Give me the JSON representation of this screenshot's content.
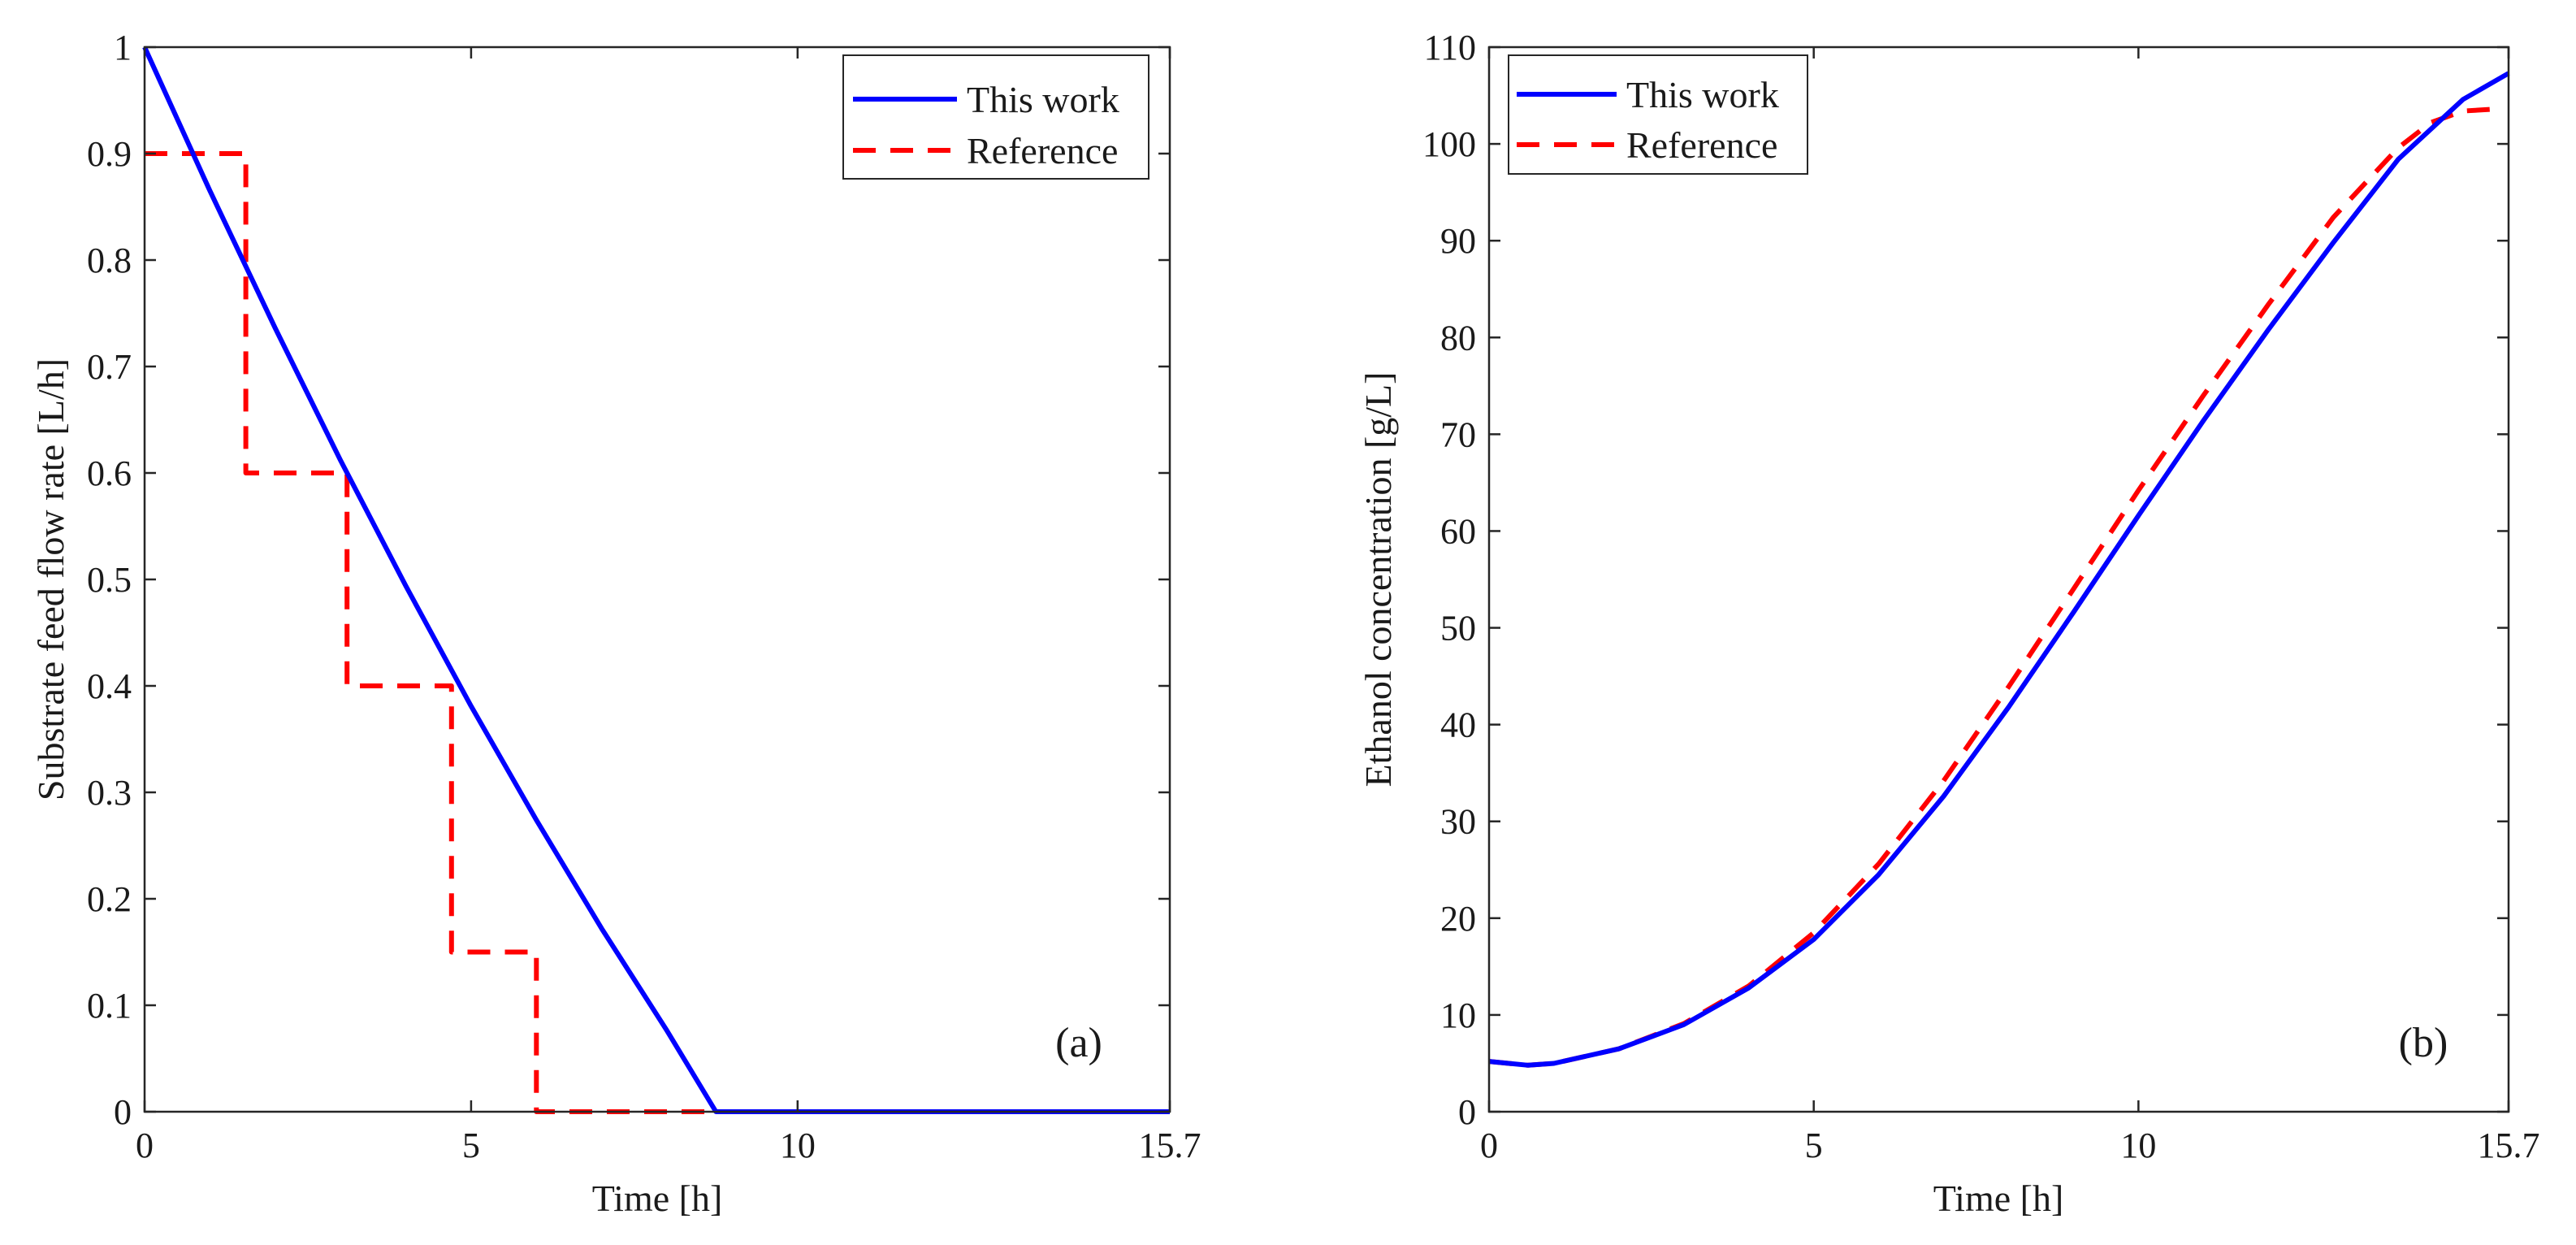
{
  "chart_data": [
    {
      "type": "line",
      "panel_label": "(a)",
      "xlabel": "Time [h]",
      "ylabel": "Substrate feed flow rate [L/h]",
      "xlim": [
        0,
        15.7
      ],
      "ylim": [
        0,
        1
      ],
      "xticks": [
        0,
        5,
        10,
        15.7
      ],
      "xtick_labels": [
        "0",
        "5",
        "10",
        "15.7"
      ],
      "yticks": [
        0,
        0.1,
        0.2,
        0.3,
        0.4,
        0.5,
        0.6,
        0.7,
        0.8,
        0.9,
        1
      ],
      "ytick_labels": [
        "0",
        "0.1",
        "0.2",
        "0.3",
        "0.4",
        "0.5",
        "0.6",
        "0.7",
        "0.8",
        "0.9",
        "1"
      ],
      "grid": false,
      "legend_position": "top-right",
      "series": [
        {
          "name": "This work",
          "color": "#0000ff",
          "style": "solid",
          "x": [
            0,
            1,
            2,
            3,
            4,
            5,
            6,
            7,
            8,
            8.75,
            9.5,
            11,
            13,
            15.7
          ],
          "y": [
            1.0,
            0.865,
            0.736,
            0.612,
            0.494,
            0.381,
            0.274,
            0.172,
            0.076,
            0.0,
            0.0,
            0.0,
            0.0,
            0.0
          ]
        },
        {
          "name": "Reference",
          "color": "#ff0000",
          "style": "dashed",
          "x": [
            0,
            1.55,
            1.55,
            3.1,
            3.1,
            4.7,
            4.7,
            6.0,
            6.0,
            15.7
          ],
          "y": [
            0.9,
            0.9,
            0.6,
            0.6,
            0.4,
            0.4,
            0.15,
            0.15,
            0.0,
            0.0
          ]
        }
      ]
    },
    {
      "type": "line",
      "panel_label": "(b)",
      "xlabel": "Time [h]",
      "ylabel": "Ethanol concentration [g/L]",
      "xlim": [
        0,
        15.7
      ],
      "ylim": [
        0,
        110
      ],
      "xticks": [
        0,
        5,
        10,
        15.7
      ],
      "xtick_labels": [
        "0",
        "5",
        "10",
        "15.7"
      ],
      "yticks": [
        0,
        10,
        20,
        30,
        40,
        50,
        60,
        70,
        80,
        90,
        100,
        110
      ],
      "ytick_labels": [
        "0",
        "10",
        "20",
        "30",
        "40",
        "50",
        "60",
        "70",
        "80",
        "90",
        "100",
        "110"
      ],
      "grid": false,
      "legend_position": "top-left",
      "series": [
        {
          "name": "This work",
          "color": "#0000ff",
          "style": "solid",
          "x": [
            0,
            0.6,
            1,
            2,
            3,
            4,
            5,
            6,
            7,
            8,
            9,
            10,
            11,
            12,
            13,
            14,
            15,
            15.7
          ],
          "y": [
            5.2,
            4.8,
            5.0,
            6.5,
            9.0,
            12.8,
            17.8,
            24.5,
            32.6,
            41.8,
            51.6,
            61.6,
            71.4,
            80.8,
            89.8,
            98.4,
            104.6,
            107.3
          ]
        },
        {
          "name": "Reference",
          "color": "#ff0000",
          "style": "dashed",
          "x": [
            0,
            0.6,
            1,
            2,
            3,
            4,
            5,
            6,
            7,
            8,
            9,
            10,
            11,
            12,
            13,
            14,
            14.5,
            15,
            15.5
          ],
          "y": [
            5.2,
            4.8,
            5.0,
            6.5,
            9.1,
            13.0,
            18.5,
            25.6,
            34.2,
            43.9,
            54.0,
            64.2,
            74.0,
            83.4,
            92.4,
            99.6,
            102.2,
            103.4,
            103.6
          ]
        }
      ]
    }
  ]
}
